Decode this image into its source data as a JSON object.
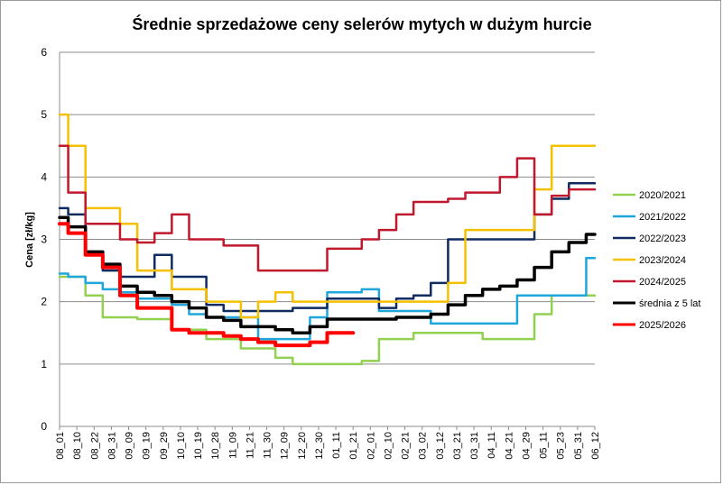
{
  "chart_data": {
    "type": "line",
    "title": "Średnie sprzedażowe ceny selerów mytych w dużym hurcie",
    "xlabel": "",
    "ylabel": "Cena [zł/kg]",
    "ylim": [
      0,
      6
    ],
    "yticks": [
      0,
      1,
      2,
      3,
      4,
      5,
      6
    ],
    "grid": true,
    "legend_position": "right",
    "categories": [
      "08_01",
      "08_10",
      "08_22",
      "08_31",
      "09_09",
      "09_19",
      "09_29",
      "10_10",
      "10_19",
      "10_28",
      "11_09",
      "11_21",
      "11_30",
      "12_09",
      "12_20",
      "12_30",
      "01_11",
      "01_21",
      "02_01",
      "02_10",
      "02_21",
      "03_02",
      "03_12",
      "03_21",
      "03_31",
      "04_11",
      "04_21",
      "04_29",
      "05_11",
      "05_23",
      "05_31",
      "06_12"
    ],
    "series": [
      {
        "name": "2020/2021",
        "color": "#92d050",
        "width": 2.5,
        "values": [
          2.4,
          2.4,
          2.1,
          1.75,
          1.75,
          1.72,
          1.72,
          1.55,
          1.55,
          1.4,
          1.4,
          1.25,
          1.25,
          1.1,
          1.0,
          1.0,
          1.0,
          1.0,
          1.05,
          1.4,
          1.4,
          1.5,
          1.5,
          1.5,
          1.5,
          1.4,
          1.4,
          1.4,
          1.8,
          2.1,
          2.1,
          2.1
        ]
      },
      {
        "name": "2021/2022",
        "color": "#1fa7dc",
        "width": 2.5,
        "values": [
          2.45,
          2.4,
          2.3,
          2.2,
          2.15,
          2.05,
          2.05,
          1.95,
          1.8,
          1.75,
          1.75,
          1.75,
          1.4,
          1.4,
          1.4,
          1.75,
          2.15,
          2.15,
          2.2,
          1.85,
          1.85,
          1.85,
          1.65,
          1.65,
          1.65,
          1.65,
          1.65,
          2.1,
          2.1,
          2.1,
          2.1,
          2.7
        ]
      },
      {
        "name": "2022/2023",
        "color": "#0f2b5f",
        "width": 2.5,
        "values": [
          3.5,
          3.4,
          2.8,
          2.5,
          2.4,
          2.4,
          2.75,
          2.4,
          2.4,
          1.95,
          1.85,
          1.85,
          1.85,
          1.85,
          1.9,
          1.9,
          2.05,
          2.05,
          2.05,
          1.9,
          2.05,
          2.1,
          2.3,
          3.0,
          3.0,
          3.0,
          3.0,
          3.0,
          3.4,
          3.65,
          3.9,
          3.9
        ]
      },
      {
        "name": "2023/2024",
        "color": "#f5c000",
        "width": 2.5,
        "values": [
          5.0,
          4.5,
          3.5,
          3.5,
          3.25,
          2.5,
          2.5,
          2.2,
          2.2,
          2.0,
          2.0,
          1.75,
          2.0,
          2.15,
          2.0,
          2.0,
          2.0,
          2.0,
          2.0,
          2.0,
          2.0,
          2.0,
          2.0,
          2.3,
          3.15,
          3.15,
          3.15,
          3.15,
          3.8,
          4.5,
          4.5,
          4.5
        ]
      },
      {
        "name": "2024/2025",
        "color": "#c0182c",
        "width": 2.5,
        "values": [
          4.5,
          3.75,
          3.25,
          3.25,
          3.0,
          2.95,
          3.1,
          3.4,
          3.0,
          3.0,
          2.9,
          2.9,
          2.5,
          2.5,
          2.5,
          2.5,
          2.85,
          2.85,
          3.0,
          3.15,
          3.4,
          3.6,
          3.6,
          3.65,
          3.75,
          3.75,
          4.0,
          4.3,
          3.4,
          3.7,
          3.8,
          3.8
        ]
      },
      {
        "name": "średnia z 5 lat",
        "color": "#000000",
        "width": 3.5,
        "values": [
          3.35,
          3.2,
          2.8,
          2.6,
          2.25,
          2.15,
          2.1,
          2.0,
          1.9,
          1.75,
          1.7,
          1.6,
          1.6,
          1.55,
          1.5,
          1.6,
          1.72,
          1.72,
          1.72,
          1.72,
          1.75,
          1.75,
          1.8,
          1.95,
          2.1,
          2.2,
          2.25,
          2.35,
          2.55,
          2.8,
          2.95,
          3.08
        ]
      },
      {
        "name": "2025/2026",
        "color": "#ff0000",
        "width": 4,
        "values": [
          3.25,
          3.1,
          2.75,
          2.55,
          2.1,
          1.9,
          1.9,
          1.55,
          1.5,
          1.5,
          1.45,
          1.4,
          1.35,
          1.3,
          1.3,
          1.35,
          1.5,
          1.5,
          null,
          null,
          null,
          null,
          null,
          null,
          null,
          null,
          null,
          null,
          null,
          null,
          null,
          null
        ]
      }
    ]
  }
}
